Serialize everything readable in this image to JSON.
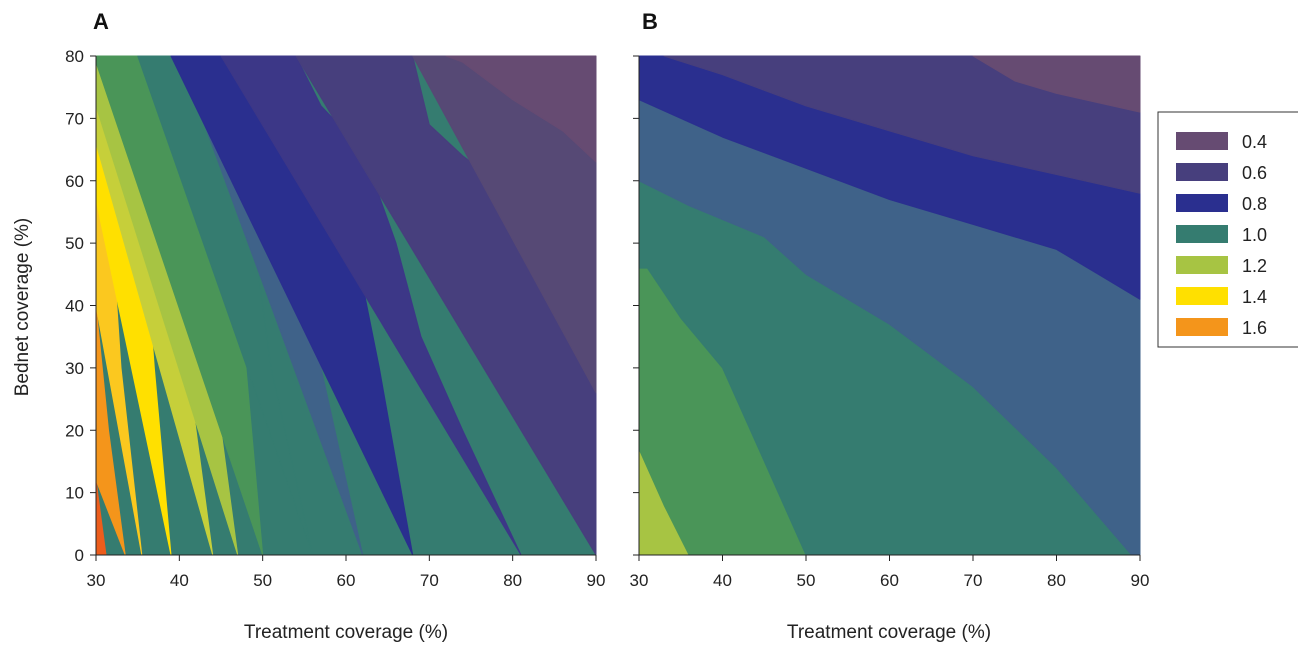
{
  "palette": {
    "0.4": "#664b72",
    "0.5": "#564975",
    "0.6": "#473f7d",
    "0.7": "#3c3787",
    "0.8": "#2a2f8f",
    "0.9": "#3f6289",
    "1.0": "#357c70",
    "1.1": "#4a9558",
    "1.2": "#a7c443",
    "1.3": "#c6cf3a",
    "1.4": "#ffe000",
    "1.5": "#fbc81f",
    "1.6": "#f4951b",
    "1.7": "#ed5d1c"
  },
  "chart_data": [
    {
      "panel": "A",
      "type": "heatmap",
      "subtype": "filled-contour",
      "xlabel": "Treatment coverage (%)",
      "ylabel": "Bednet coverage (%)",
      "xlim": [
        30,
        90
      ],
      "ylim": [
        0,
        80
      ],
      "xticks": [
        30,
        40,
        50,
        60,
        70,
        80,
        90
      ],
      "yticks": [
        0,
        10,
        20,
        30,
        40,
        50,
        60,
        70,
        80
      ],
      "x_is_treatment": true,
      "bands": [
        {
          "level": "1.7",
          "boundary": [
            [
              31.2,
              0
            ],
            [
              30,
              12
            ],
            [
              30,
              0
            ]
          ]
        },
        {
          "level": "1.6",
          "boundary": [
            [
              33.5,
              0
            ],
            [
              31.5,
              20
            ],
            [
              30,
              40
            ],
            [
              30,
              12
            ]
          ]
        },
        {
          "level": "1.5",
          "boundary": [
            [
              35.5,
              0
            ],
            [
              33,
              30
            ],
            [
              32,
              50
            ],
            [
              30,
              57
            ],
            [
              30,
              40
            ]
          ]
        },
        {
          "level": "1.4",
          "boundary": [
            [
              39,
              0
            ],
            [
              37,
              30
            ],
            [
              36,
              48
            ],
            [
              34,
              60
            ],
            [
              32,
              65
            ],
            [
              30,
              66
            ],
            [
              30,
              57
            ]
          ]
        },
        {
          "level": "1.3",
          "boundary": [
            [
              44,
              0
            ],
            [
              41,
              30
            ],
            [
              39,
              50
            ],
            [
              37,
              58
            ],
            [
              35,
              65
            ],
            [
              30,
              72
            ],
            [
              30,
              66
            ]
          ]
        },
        {
          "level": "1.2",
          "boundary": [
            [
              47,
              0
            ],
            [
              44,
              30
            ],
            [
              42,
              50
            ],
            [
              40,
              60
            ],
            [
              37,
              66
            ],
            [
              32,
              73
            ],
            [
              30,
              79
            ],
            [
              30,
              72
            ]
          ]
        },
        {
          "level": "1.1",
          "boundary": [
            [
              50,
              0
            ],
            [
              48,
              30
            ],
            [
              46,
              50
            ],
            [
              44,
              63
            ],
            [
              41,
              70
            ],
            [
              35,
              80
            ],
            [
              30,
              80
            ],
            [
              30,
              79
            ]
          ]
        },
        {
          "level": "1.0",
          "boundary": [
            [
              56,
              0
            ],
            [
              51,
              30
            ],
            [
              49,
              50
            ],
            [
              47,
              60
            ],
            [
              45,
              67
            ],
            [
              40,
              80
            ],
            [
              35,
              80
            ]
          ]
        },
        {
          "level": "0.9",
          "boundary": [
            [
              62,
              0
            ],
            [
              57,
              30
            ],
            [
              54,
              50
            ],
            [
              50,
              57
            ],
            [
              49,
              65
            ],
            [
              45,
              72
            ],
            [
              39,
              80
            ],
            [
              40,
              80
            ]
          ]
        },
        {
          "level": "0.8",
          "boundary": [
            [
              68,
              0
            ],
            [
              64,
              30
            ],
            [
              61,
              50
            ],
            [
              56,
              60
            ],
            [
              53,
              68
            ],
            [
              50,
              73
            ],
            [
              45,
              80
            ],
            [
              39,
              80
            ]
          ]
        },
        {
          "level": "0.7",
          "boundary": [
            [
              81,
              0
            ],
            [
              74,
              20
            ],
            [
              69,
              35
            ],
            [
              66,
              50
            ],
            [
              62,
              65
            ],
            [
              57,
              72
            ],
            [
              54,
              80
            ],
            [
              45,
              80
            ]
          ]
        },
        {
          "level": "0.6",
          "boundary": [
            [
              90,
              0
            ],
            [
              90,
              26
            ],
            [
              85,
              50
            ],
            [
              80,
              58
            ],
            [
              74,
              64
            ],
            [
              70,
              69
            ],
            [
              68,
              80
            ],
            [
              54,
              80
            ]
          ]
        },
        {
          "level": "0.5",
          "boundary": [
            [
              90,
              26
            ],
            [
              90,
              63
            ],
            [
              86,
              68
            ],
            [
              80,
              73
            ],
            [
              74,
              79
            ],
            [
              72,
              80
            ],
            [
              68,
              80
            ]
          ]
        },
        {
          "level": "0.4",
          "boundary": [
            [
              90,
              63
            ],
            [
              90,
              80
            ],
            [
              72,
              80
            ],
            [
              74,
              79
            ],
            [
              80,
              73
            ],
            [
              86,
              68
            ]
          ]
        }
      ]
    },
    {
      "panel": "B",
      "type": "heatmap",
      "subtype": "filled-contour",
      "xlabel": "Treatment coverage (%)",
      "ylabel": "",
      "xlim": [
        30,
        90
      ],
      "ylim": [
        0,
        80
      ],
      "xticks": [
        30,
        40,
        50,
        60,
        70,
        80,
        90
      ],
      "yticks": [
        0,
        10,
        20,
        30,
        40,
        50,
        60,
        70,
        80
      ],
      "bands": [
        {
          "level": "1.2",
          "boundary": [
            [
              30,
              0
            ],
            [
              36,
              0
            ],
            [
              33,
              8
            ],
            [
              30,
              17
            ]
          ]
        },
        {
          "level": "1.1",
          "boundary": [
            [
              36,
              0
            ],
            [
              50,
              0
            ],
            [
              45,
              15
            ],
            [
              40,
              30
            ],
            [
              35,
              38
            ],
            [
              31,
              46
            ],
            [
              30,
              46
            ],
            [
              30,
              17
            ],
            [
              33,
              8
            ]
          ]
        },
        {
          "level": "1.0",
          "boundary": [
            [
              50,
              0
            ],
            [
              89,
              0
            ],
            [
              80,
              14
            ],
            [
              70,
              27
            ],
            [
              60,
              37
            ],
            [
              50,
              45
            ],
            [
              45,
              51
            ],
            [
              36,
              56
            ],
            [
              30,
              60
            ],
            [
              30,
              46
            ],
            [
              31,
              46
            ],
            [
              35,
              38
            ],
            [
              40,
              30
            ],
            [
              45,
              15
            ]
          ]
        },
        {
          "level": "0.9",
          "boundary": [
            [
              89,
              0
            ],
            [
              90,
              0
            ],
            [
              90,
              41
            ],
            [
              85,
              45
            ],
            [
              80,
              49
            ],
            [
              70,
              53
            ],
            [
              60,
              57
            ],
            [
              50,
              62
            ],
            [
              40,
              67
            ],
            [
              30,
              73
            ],
            [
              30,
              60
            ],
            [
              36,
              56
            ],
            [
              45,
              51
            ],
            [
              50,
              45
            ],
            [
              60,
              37
            ],
            [
              70,
              27
            ],
            [
              80,
              14
            ]
          ]
        },
        {
          "level": "0.8",
          "boundary": [
            [
              90,
              41
            ],
            [
              90,
              58
            ],
            [
              80,
              61
            ],
            [
              70,
              64
            ],
            [
              60,
              68
            ],
            [
              50,
              72
            ],
            [
              40,
              77
            ],
            [
              33,
              80
            ],
            [
              30,
              80
            ],
            [
              30,
              73
            ],
            [
              40,
              67
            ],
            [
              50,
              62
            ],
            [
              60,
              57
            ],
            [
              70,
              53
            ],
            [
              80,
              49
            ],
            [
              85,
              45
            ]
          ]
        },
        {
          "level": "0.6",
          "boundary": [
            [
              90,
              58
            ],
            [
              90,
              71
            ],
            [
              80,
              74
            ],
            [
              75,
              76
            ],
            [
              70,
              80
            ],
            [
              33,
              80
            ],
            [
              40,
              77
            ],
            [
              50,
              72
            ],
            [
              60,
              68
            ],
            [
              70,
              64
            ],
            [
              80,
              61
            ]
          ]
        },
        {
          "level": "0.4",
          "boundary": [
            [
              90,
              71
            ],
            [
              90,
              80
            ],
            [
              70,
              80
            ],
            [
              75,
              76
            ],
            [
              80,
              74
            ]
          ]
        }
      ]
    }
  ],
  "panels": {
    "A": {
      "letter": "A"
    },
    "B": {
      "letter": "B"
    }
  },
  "axis": {
    "ylabel": "Bednet coverage (%)",
    "xlabel_a": "Treatment coverage (%)",
    "xlabel_b": "Treatment coverage (%)"
  },
  "legend": {
    "items": [
      {
        "label": "0.4",
        "level": "0.4"
      },
      {
        "label": "0.6",
        "level": "0.6"
      },
      {
        "label": "0.8",
        "level": "0.8"
      },
      {
        "label": "1.0",
        "level": "1.0"
      },
      {
        "label": "1.2",
        "level": "1.2"
      },
      {
        "label": "1.4",
        "level": "1.4"
      },
      {
        "label": "1.6",
        "level": "1.6"
      }
    ]
  }
}
